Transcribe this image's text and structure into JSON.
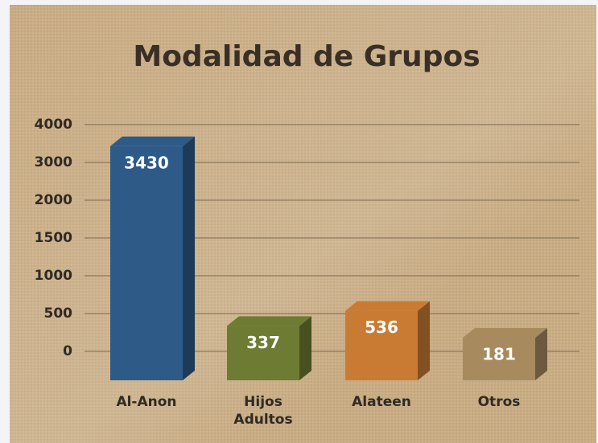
{
  "chart_data": {
    "type": "bar",
    "title": "Modalidad de Grupos",
    "categories": [
      "Al-Anon",
      "Hijos Adultos",
      "Alateen",
      "Otros"
    ],
    "values": [
      3430,
      337,
      536,
      181
    ],
    "colors": [
      "#2d5a87",
      "#6e7b32",
      "#c97b34",
      "#a88a5f"
    ],
    "ylim": [
      0,
      4000
    ],
    "yticks": [
      0,
      500,
      1000,
      1500,
      2000,
      3000,
      4000
    ],
    "grid": true
  }
}
